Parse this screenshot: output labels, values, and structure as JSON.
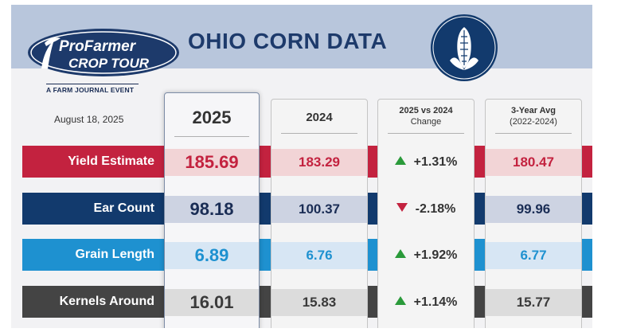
{
  "brand": {
    "logo_line1": "ProFarmer",
    "logo_line2": "CROP TOUR",
    "tagline": "A FARM JOURNAL EVENT"
  },
  "date": "August 18, 2025",
  "title": "OHIO CORN DATA",
  "emblem_icon": "corn-icon",
  "columns": {
    "c2025": "2025",
    "c2024": "2024",
    "change_line1": "2025 vs 2024",
    "change_line2": "Change",
    "avg_line1": "3-Year Avg",
    "avg_line2": "(2022-2024)"
  },
  "rows": [
    {
      "label": "Yield Estimate",
      "v2025": "185.69",
      "v2024": "183.29",
      "direction": "up",
      "change": "+1.31%",
      "avg": "180.47",
      "color": "#c3223f"
    },
    {
      "label": "Ear Count",
      "v2025": "98.18",
      "v2024": "100.37",
      "direction": "down",
      "change": "-2.18%",
      "avg": "99.96",
      "color": "#123a6d"
    },
    {
      "label": "Grain Length",
      "v2025": "6.89",
      "v2024": "6.76",
      "direction": "up",
      "change": "+1.92%",
      "avg": "6.77",
      "color": "#1e91d0"
    },
    {
      "label": "Kernels Around",
      "v2025": "16.01",
      "v2024": "15.83",
      "direction": "up",
      "change": "+1.14%",
      "avg": "15.77",
      "color": "#444444"
    }
  ]
}
